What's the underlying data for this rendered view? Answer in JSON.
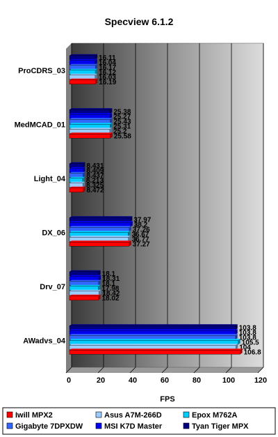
{
  "chart_data": {
    "type": "bar",
    "orientation": "horizontal",
    "title": "Specview 6.1.2",
    "xlabel": "FPS",
    "ylabel": "",
    "xlim": [
      0,
      120
    ],
    "x_ticks": [
      "0",
      "20",
      "40",
      "60",
      "80",
      "100",
      "120"
    ],
    "grid": true,
    "legend_position": "bottom",
    "categories": [
      "ProCDRS_03",
      "MedMCAD_01",
      "Light_04",
      "DX_06",
      "Drv_07",
      "AWadvs_04"
    ],
    "series": [
      {
        "name": "Tyan Tiger MPX",
        "color": "#000080",
        "values": [
          16.11,
          25.38,
          8.431,
          37.97,
          18.1,
          103.8
        ],
        "labels": [
          "16.11",
          "25.38",
          "8.431",
          "37.97",
          "18.1",
          "103.8"
        ]
      },
      {
        "name": "MSI K7D Master",
        "color": "#0000ee",
        "values": [
          16.04,
          25.27,
          8.409,
          38.2,
          18.31,
          103.8
        ],
        "labels": [
          "16.04",
          "25.27",
          "8.409",
          "38.2",
          "18.31",
          "103.8"
        ]
      },
      {
        "name": "Gigabyte 7DPXDW",
        "color": "#3366ff",
        "values": [
          16.17,
          25.43,
          8.437,
          37.26,
          18.1,
          103.8
        ],
        "labels": [
          "16.17",
          "25.43",
          "8.437",
          "37.26",
          "18.1",
          "103.8"
        ]
      },
      {
        "name": "Epox M762A",
        "color": "#00ccff",
        "values": [
          16.12,
          25.31,
          8.213,
          36.67,
          17.98,
          105.5
        ],
        "labels": [
          "16.12",
          "25.31",
          "8.213",
          "36.67",
          "17.98",
          "105.5"
        ]
      },
      {
        "name": "Asus A7M-266D",
        "color": "#99ccff",
        "values": [
          16.03,
          25.2,
          8.325,
          36.77,
          18.42,
          104
        ],
        "labels": [
          "16.03",
          "25.2",
          "8.325",
          "36.77",
          "18.42",
          "104"
        ]
      },
      {
        "name": "Iwill MPX2",
        "color": "#ff0000",
        "values": [
          16.19,
          25.58,
          8.472,
          37.27,
          18.02,
          106.8
        ],
        "labels": [
          "16.19",
          "25.58",
          "8.472",
          "37.27",
          "18.02",
          "106.8"
        ]
      }
    ],
    "legend_order": [
      "Iwill MPX2",
      "Asus A7M-266D",
      "Epox M762A",
      "Gigabyte 7DPXDW",
      "MSI K7D Master",
      "Tyan Tiger MPX"
    ]
  }
}
